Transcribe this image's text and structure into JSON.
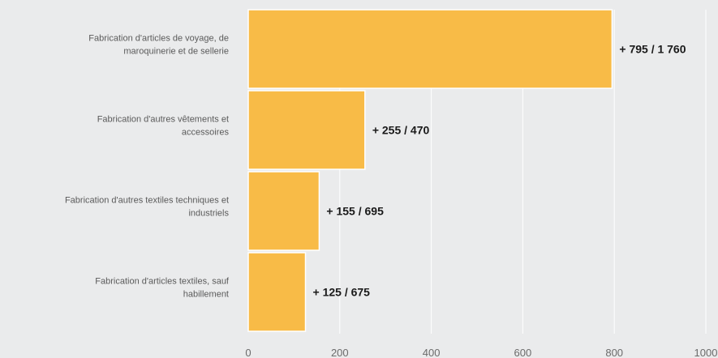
{
  "chart_data": {
    "type": "bar",
    "orientation": "horizontal",
    "title": "",
    "xlabel": "",
    "ylabel": "",
    "categories": [
      [
        "Fabrication d'articles de voyage, de",
        "maroquinerie et de sellerie"
      ],
      [
        "Fabrication d'autres vêtements et",
        "accessoires"
      ],
      [
        "Fabrication d'autres textiles techniques et",
        "industriels"
      ],
      [
        "Fabrication d'articles textiles, sauf",
        "habillement"
      ]
    ],
    "values": [
      795,
      255,
      155,
      125
    ],
    "data_labels": [
      "+ 795 / 1 760",
      "+ 255 / 470",
      "+ 155 / 695",
      "+ 125 / 675"
    ],
    "xlim": [
      0,
      1000
    ],
    "xticks": [
      0,
      200,
      400,
      600,
      800,
      1000
    ],
    "xtick_labels": [
      "0",
      "200",
      "400",
      "600",
      "800",
      "1000"
    ],
    "grid": true,
    "legend": "none",
    "colors": {
      "bar": "#f8bb47",
      "background": "#eaebec",
      "grid": "#ffffff"
    }
  }
}
